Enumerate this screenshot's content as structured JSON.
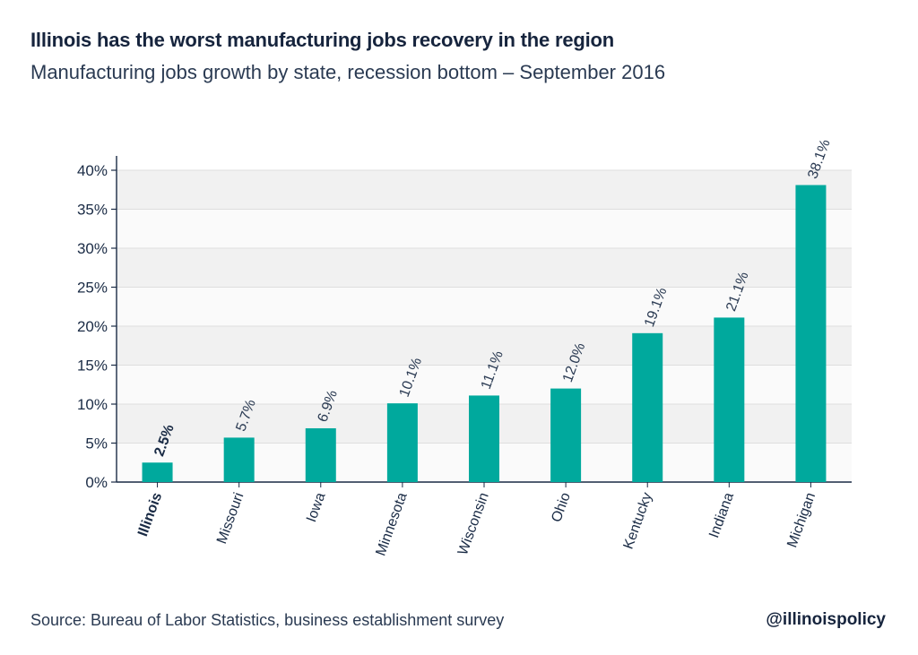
{
  "header": {
    "title": "Illinois has the worst manufacturing jobs recovery in the region",
    "subtitle": "Manufacturing jobs growth by state, recession bottom – September 2016"
  },
  "footer": {
    "source": "Source: Bureau of Labor Statistics, business establishment survey",
    "handle": "@illinoispolicy"
  },
  "chart_data": {
    "type": "bar",
    "categories": [
      "Illinois",
      "Missouri",
      "Iowa",
      "Minnesota",
      "Wisconsin",
      "Ohio",
      "Kentucky",
      "Indiana",
      "Michigan"
    ],
    "values": [
      2.5,
      5.7,
      6.9,
      10.1,
      11.1,
      12.0,
      19.1,
      21.1,
      38.1
    ],
    "value_labels": [
      "2.5%",
      "5.7%",
      "6.9%",
      "10.1%",
      "11.1%",
      "12.0%",
      "19.1%",
      "21.1%",
      "38.1%"
    ],
    "highlight_category": "Illinois",
    "ylim": [
      0,
      40
    ],
    "yticks": [
      0,
      5,
      10,
      15,
      20,
      25,
      30,
      35,
      40
    ],
    "ytick_labels": [
      "0%",
      "5%",
      "10%",
      "15%",
      "20%",
      "25%",
      "30%",
      "35%",
      "40%"
    ],
    "grid": true,
    "bar_color": "#00a99d",
    "band_colors": [
      "#f1f1f1",
      "#fafafa"
    ]
  }
}
